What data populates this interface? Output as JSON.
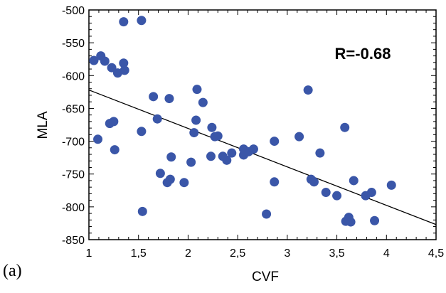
{
  "panel_label": "(a)",
  "chart_data": {
    "type": "scatter",
    "xlabel": "CVF",
    "ylabel": "MLA",
    "annotation": "R=-0.68",
    "xlim": [
      1,
      4.5
    ],
    "ylim": [
      -850,
      -500
    ],
    "x_ticks": [
      1,
      1.5,
      2,
      2.5,
      3,
      3.5,
      4,
      4.5
    ],
    "x_tick_labels": [
      "1",
      "1,5",
      "2",
      "2,5",
      "3",
      "3,5",
      "4",
      "4,5"
    ],
    "y_ticks": [
      -500,
      -550,
      -600,
      -650,
      -700,
      -750,
      -800,
      -850
    ],
    "y_tick_labels": [
      "-500",
      "-550",
      "-600",
      "-650",
      "-700",
      "-750",
      "-800",
      "-850"
    ],
    "grid": false,
    "marker_color": "#3a56a8",
    "line_color": "#000000",
    "trendline": {
      "x": [
        1,
        4.5
      ],
      "y": [
        -622,
        -827
      ]
    },
    "points": [
      {
        "x": 1.05,
        "y": -577
      },
      {
        "x": 1.12,
        "y": -570
      },
      {
        "x": 1.16,
        "y": -578
      },
      {
        "x": 1.23,
        "y": -588
      },
      {
        "x": 1.29,
        "y": -596
      },
      {
        "x": 1.35,
        "y": -581
      },
      {
        "x": 1.36,
        "y": -592
      },
      {
        "x": 1.35,
        "y": -518
      },
      {
        "x": 1.53,
        "y": -516
      },
      {
        "x": 1.09,
        "y": -697
      },
      {
        "x": 1.21,
        "y": -673
      },
      {
        "x": 1.25,
        "y": -670
      },
      {
        "x": 1.26,
        "y": -713
      },
      {
        "x": 1.53,
        "y": -685
      },
      {
        "x": 1.54,
        "y": -807
      },
      {
        "x": 1.65,
        "y": -632
      },
      {
        "x": 1.69,
        "y": -666
      },
      {
        "x": 1.72,
        "y": -749
      },
      {
        "x": 1.79,
        "y": -763
      },
      {
        "x": 1.82,
        "y": -758
      },
      {
        "x": 1.81,
        "y": -635
      },
      {
        "x": 1.83,
        "y": -724
      },
      {
        "x": 1.96,
        "y": -763
      },
      {
        "x": 2.03,
        "y": -732
      },
      {
        "x": 2.06,
        "y": -687
      },
      {
        "x": 2.08,
        "y": -668
      },
      {
        "x": 2.09,
        "y": -621
      },
      {
        "x": 2.15,
        "y": -641
      },
      {
        "x": 2.23,
        "y": -723
      },
      {
        "x": 2.24,
        "y": -679
      },
      {
        "x": 2.27,
        "y": -693
      },
      {
        "x": 2.3,
        "y": -692
      },
      {
        "x": 2.35,
        "y": -723
      },
      {
        "x": 2.39,
        "y": -729
      },
      {
        "x": 2.44,
        "y": -718
      },
      {
        "x": 2.56,
        "y": -712
      },
      {
        "x": 2.56,
        "y": -721
      },
      {
        "x": 2.61,
        "y": -716
      },
      {
        "x": 2.66,
        "y": -712
      },
      {
        "x": 2.79,
        "y": -811
      },
      {
        "x": 2.87,
        "y": -700
      },
      {
        "x": 2.87,
        "y": -762
      },
      {
        "x": 3.12,
        "y": -693
      },
      {
        "x": 3.21,
        "y": -622
      },
      {
        "x": 3.24,
        "y": -758
      },
      {
        "x": 3.27,
        "y": -762
      },
      {
        "x": 3.33,
        "y": -718
      },
      {
        "x": 3.39,
        "y": -778
      },
      {
        "x": 3.5,
        "y": -783
      },
      {
        "x": 3.58,
        "y": -679
      },
      {
        "x": 3.59,
        "y": -822
      },
      {
        "x": 3.62,
        "y": -816
      },
      {
        "x": 3.64,
        "y": -823
      },
      {
        "x": 3.67,
        "y": -760
      },
      {
        "x": 3.79,
        "y": -783
      },
      {
        "x": 3.85,
        "y": -778
      },
      {
        "x": 3.88,
        "y": -821
      },
      {
        "x": 4.05,
        "y": -767
      }
    ]
  }
}
